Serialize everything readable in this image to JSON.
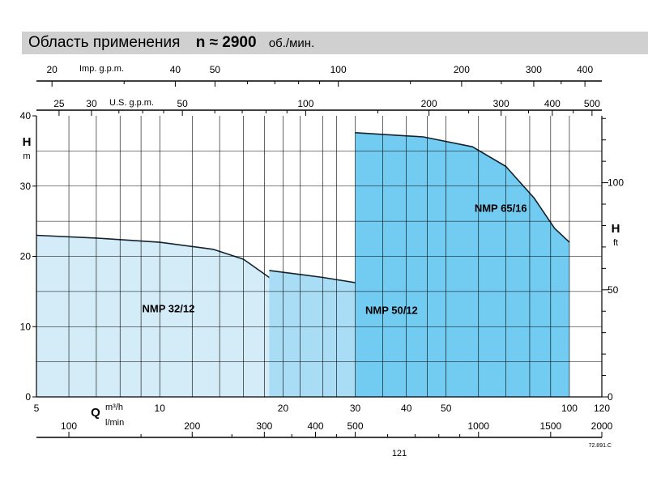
{
  "title": {
    "text": "Область применения",
    "speed": "n ≈ 2900",
    "speed_unit": "об./мин."
  },
  "chart_data": {
    "type": "area",
    "x_axis": {
      "label": "Q",
      "unit": "m³/h",
      "scale": "log",
      "range": [
        5,
        120
      ],
      "ticks": [
        5,
        10,
        20,
        30,
        40,
        50,
        100,
        120
      ],
      "tick_labels": [
        "5",
        "10",
        "20",
        "30",
        "40",
        "50",
        "100",
        "120"
      ],
      "minor_ticks": [
        6,
        7,
        8,
        9,
        15,
        25,
        35,
        45,
        60,
        70,
        80,
        90
      ]
    },
    "x_axis_lmin": {
      "unit": "l/min",
      "ticks": [
        100,
        200,
        300,
        400,
        500,
        1000,
        1500,
        2000
      ],
      "tick_labels": [
        "100",
        "200",
        "300",
        "400",
        "500",
        "1000",
        "1500",
        "2000"
      ],
      "minor_ticks": [
        150,
        250,
        350,
        450,
        600,
        700,
        800,
        900
      ]
    },
    "x_axis_imp": {
      "label": "Imp. g.p.m.",
      "ticks": [
        20,
        40,
        50,
        100,
        200,
        300,
        400
      ],
      "tick_labels": [
        "20",
        "40",
        "50",
        "100",
        "200",
        "300",
        "400"
      ],
      "minor_ticks": [
        30,
        60,
        70,
        80,
        90,
        150,
        250,
        350
      ]
    },
    "x_axis_us": {
      "label": "U.S. g.p.m.",
      "ticks": [
        25,
        30,
        50,
        100,
        200,
        300,
        400,
        500
      ],
      "tick_labels": [
        "25",
        "30",
        "50",
        "100",
        "200",
        "300",
        "400",
        "500"
      ],
      "minor_ticks": [
        35,
        40,
        45,
        60,
        70,
        80,
        90,
        150,
        250,
        350,
        450
      ]
    },
    "y_axis": {
      "label": "H",
      "unit": "m",
      "range": [
        0,
        40
      ],
      "ticks": [
        0,
        10,
        20,
        30,
        40
      ],
      "tick_labels": [
        "0",
        "10",
        "20",
        "30",
        "40"
      ],
      "gridlines": [
        5,
        10,
        15,
        20,
        25,
        30,
        35
      ]
    },
    "y_axis_ft": {
      "label": "H",
      "unit": "ft",
      "ticks": [
        0,
        50,
        100
      ],
      "tick_labels": [
        "0",
        "50",
        "100"
      ],
      "minor_ticks": [
        10,
        20,
        30,
        40,
        60,
        70,
        80,
        90,
        110,
        120,
        130
      ]
    },
    "x_gridlines": [
      6,
      7,
      8,
      9,
      10,
      12,
      14,
      16,
      18,
      20,
      22,
      25,
      27,
      30,
      35,
      40,
      45,
      50,
      60,
      70,
      80,
      90,
      100
    ],
    "grid": true,
    "series": [
      {
        "name": "NMP 32/12",
        "color": "#d3ecf8",
        "label_at": [
          10.5,
          12.5
        ],
        "outline": [
          [
            5,
            0
          ],
          [
            5,
            23
          ],
          [
            7,
            22.6
          ],
          [
            10,
            22
          ],
          [
            13.5,
            21
          ],
          [
            16,
            19.6
          ],
          [
            18.5,
            17
          ],
          [
            21,
            14.2
          ],
          [
            24.5,
            12
          ],
          [
            24.5,
            0
          ]
        ]
      },
      {
        "name": "NMP 50/12",
        "color": "#a9dcf5",
        "label_at": [
          36.8,
          12.3
        ],
        "outline": [
          [
            18.5,
            0
          ],
          [
            18.5,
            18
          ],
          [
            25,
            17
          ],
          [
            32,
            16
          ],
          [
            40,
            14.6
          ],
          [
            46,
            12.4
          ],
          [
            52,
            9.8
          ],
          [
            58.5,
            7
          ],
          [
            58.5,
            0
          ]
        ]
      },
      {
        "name": "NMP 65/16",
        "color": "#72cbf1",
        "label_at": [
          68,
          26.8
        ],
        "outline": [
          [
            30,
            0
          ],
          [
            30,
            37.6
          ],
          [
            44,
            37
          ],
          [
            58,
            35.6
          ],
          [
            70,
            32.8
          ],
          [
            82,
            28.3
          ],
          [
            92,
            24
          ],
          [
            100,
            22
          ],
          [
            100,
            0
          ]
        ]
      }
    ],
    "footnote": "72.891.C",
    "page_number": "121"
  }
}
